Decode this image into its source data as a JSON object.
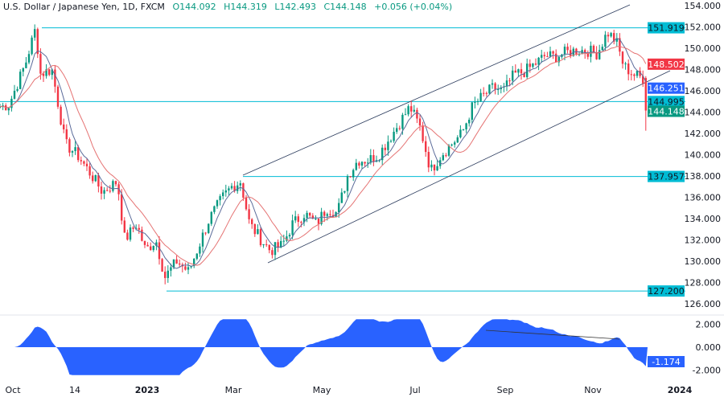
{
  "header": {
    "symbol": "U.S. Dollar / Japanese Yen, 1D, FXCM",
    "open": "O144.092",
    "high": "H144.319",
    "low": "L142.493",
    "close": "C144.148",
    "change": "+0.056 (+0.04%)"
  },
  "chart_data": {
    "type": "candlestick",
    "ylim": [
      126,
      154
    ],
    "y_ticks": [
      "154.000",
      "152.000",
      "150.000",
      "148.000",
      "146.000",
      "144.000",
      "142.000",
      "140.000",
      "138.000",
      "136.000",
      "134.000",
      "132.000",
      "130.000",
      "128.000",
      "126.000"
    ],
    "x_ticks": [
      "Oct",
      "14",
      "2023",
      "Mar",
      "May",
      "Jul",
      "Sep",
      "Nov",
      "2024"
    ],
    "approx_weekly_closes": [
      [
        "2022-09-27",
        144.5
      ],
      [
        "2022-10-03",
        144.7
      ],
      [
        "2022-10-14",
        148.5
      ],
      [
        "2022-10-21",
        151.9
      ],
      [
        "2022-10-24",
        147.6
      ],
      [
        "2022-11-01",
        148.0
      ],
      [
        "2022-11-10",
        141.0
      ],
      [
        "2022-11-18",
        140.0
      ],
      [
        "2022-11-28",
        138.0
      ],
      [
        "2022-12-05",
        136.5
      ],
      [
        "2022-12-15",
        137.5
      ],
      [
        "2022-12-20",
        132.0
      ],
      [
        "2022-12-28",
        133.5
      ],
      [
        "2023-01-03",
        131.0
      ],
      [
        "2023-01-10",
        132.0
      ],
      [
        "2023-01-16",
        128.5
      ],
      [
        "2023-01-24",
        130.0
      ],
      [
        "2023-02-01",
        129.0
      ],
      [
        "2023-02-08",
        131.5
      ],
      [
        "2023-02-15",
        134.0
      ],
      [
        "2023-02-24",
        136.0
      ],
      [
        "2023-03-02",
        137.0
      ],
      [
        "2023-03-08",
        137.5
      ],
      [
        "2023-03-14",
        133.5
      ],
      [
        "2023-03-22",
        132.0
      ],
      [
        "2023-03-28",
        131.0
      ],
      [
        "2023-04-05",
        131.5
      ],
      [
        "2023-04-12",
        133.5
      ],
      [
        "2023-04-20",
        134.5
      ],
      [
        "2023-04-28",
        133.5
      ],
      [
        "2023-05-05",
        135.0
      ],
      [
        "2023-05-12",
        134.5
      ],
      [
        "2023-05-19",
        138.0
      ],
      [
        "2023-05-26",
        139.5
      ],
      [
        "2023-06-02",
        139.5
      ],
      [
        "2023-06-09",
        140.0
      ],
      [
        "2023-06-16",
        141.5
      ],
      [
        "2023-06-23",
        143.0
      ],
      [
        "2023-06-30",
        144.5
      ],
      [
        "2023-07-07",
        142.5
      ],
      [
        "2023-07-14",
        138.5
      ],
      [
        "2023-07-21",
        140.0
      ],
      [
        "2023-07-28",
        141.0
      ],
      [
        "2023-08-04",
        142.0
      ],
      [
        "2023-08-11",
        144.5
      ],
      [
        "2023-08-18",
        145.5
      ],
      [
        "2023-08-25",
        146.3
      ],
      [
        "2023-09-01",
        146.0
      ],
      [
        "2023-09-08",
        147.5
      ],
      [
        "2023-09-15",
        147.8
      ],
      [
        "2023-09-22",
        148.5
      ],
      [
        "2023-09-29",
        149.3
      ],
      [
        "2023-10-06",
        149.2
      ],
      [
        "2023-10-13",
        149.6
      ],
      [
        "2023-10-20",
        149.8
      ],
      [
        "2023-10-27",
        149.8
      ],
      [
        "2023-11-03",
        149.5
      ],
      [
        "2023-11-10",
        151.5
      ],
      [
        "2023-11-16",
        150.6
      ],
      [
        "2023-11-21",
        148.3
      ],
      [
        "2023-11-28",
        147.5
      ],
      [
        "2023-12-04",
        147.2
      ],
      [
        "2023-12-07",
        144.1
      ]
    ],
    "horizontal_levels": [
      {
        "value": 151.919,
        "label": "151.919"
      },
      {
        "value": 144.995,
        "label": "144.995"
      },
      {
        "value": 137.957,
        "label": "137.957"
      },
      {
        "value": 127.2,
        "label": "127.200"
      }
    ],
    "price_labels": [
      {
        "label": "148.502",
        "color": "#f23645"
      },
      {
        "label": "146.251",
        "color": "#2962ff"
      },
      {
        "label": "144.148",
        "color": "#089981"
      }
    ],
    "indicator": {
      "ylim": [
        -2.5,
        2.5
      ],
      "y_ticks": [
        "2.000",
        "0.000",
        "-2.000"
      ],
      "last_value": "-1.174",
      "color": "#2962ff"
    },
    "colors": {
      "up": "#089981",
      "down": "#f23645",
      "level": "#00bcd4",
      "channel": "#2a3a5c",
      "ma_fast": "#5b6b9a",
      "ma_slow": "#e57373"
    }
  }
}
